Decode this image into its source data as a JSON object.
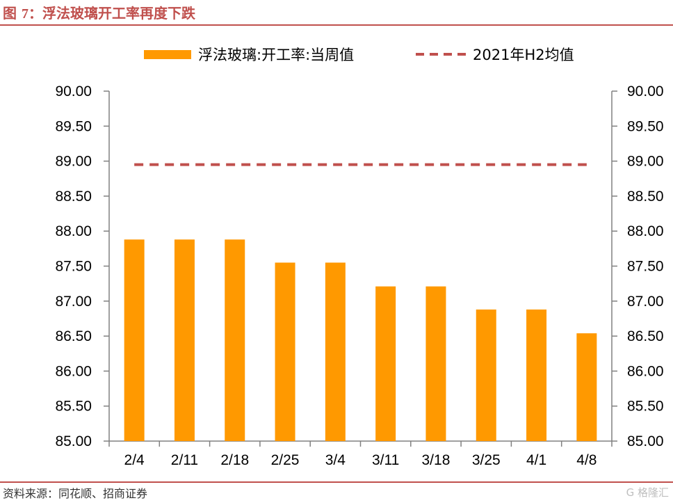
{
  "figure": {
    "title_prefix": "图",
    "title_number": "7",
    "title_text": "：浮法玻璃开工率再度下跌",
    "source": "资料来源：同花顺、招商证券",
    "watermark": "G 格隆汇"
  },
  "colors": {
    "accent": "#c0504d",
    "bar": "#ff9900",
    "avg_line": "#c0504d",
    "axis": "#808080"
  },
  "chart_data": {
    "type": "bar",
    "title": "",
    "xlabel": "",
    "ylabel": "",
    "categories": [
      "2/4",
      "2/11",
      "2/18",
      "2/25",
      "3/4",
      "3/11",
      "3/18",
      "3/25",
      "4/1",
      "4/8"
    ],
    "series": [
      {
        "name": "浮法玻璃:开工率:当周值",
        "type": "bar",
        "values": [
          87.88,
          87.88,
          87.88,
          87.55,
          87.55,
          87.21,
          87.21,
          86.88,
          86.88,
          86.54
        ]
      },
      {
        "name": "2021年H2均值",
        "type": "dashed-line",
        "values": [
          88.95,
          88.95,
          88.95,
          88.95,
          88.95,
          88.95,
          88.95,
          88.95,
          88.95,
          88.95
        ]
      }
    ],
    "ylim": [
      85.0,
      90.0
    ],
    "yticks": [
      "85.00",
      "85.50",
      "86.00",
      "86.50",
      "87.00",
      "87.50",
      "88.00",
      "88.50",
      "89.00",
      "89.50",
      "90.00"
    ],
    "y_axis_right": true,
    "grid": false,
    "legend_position": "top"
  }
}
